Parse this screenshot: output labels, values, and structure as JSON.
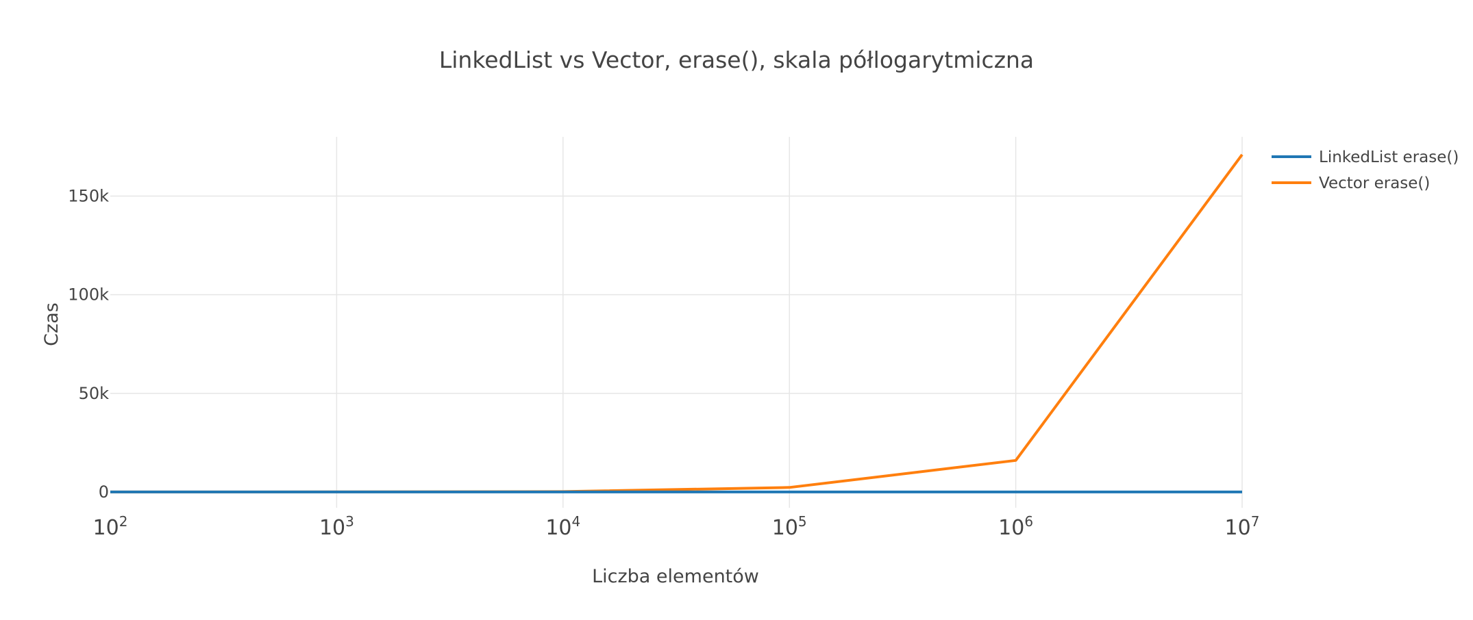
{
  "chart_data": {
    "type": "line",
    "title": "LinkedList vs Vector, erase(), skala półlogarytmiczna",
    "xlabel": "Liczba elementów",
    "ylabel": "Czas",
    "x_scale": "log",
    "xlim": [
      100,
      10000000
    ],
    "ylim": [
      -8000,
      180000
    ],
    "x_ticks": [
      {
        "base": "10",
        "exp": "2",
        "value": 100
      },
      {
        "base": "10",
        "exp": "3",
        "value": 1000
      },
      {
        "base": "10",
        "exp": "4",
        "value": 10000
      },
      {
        "base": "10",
        "exp": "5",
        "value": 100000
      },
      {
        "base": "10",
        "exp": "6",
        "value": 1000000
      },
      {
        "base": "10",
        "exp": "7",
        "value": 10000000
      }
    ],
    "y_ticks": [
      {
        "label": "0",
        "value": 0
      },
      {
        "label": "50k",
        "value": 50000
      },
      {
        "label": "100k",
        "value": 100000
      },
      {
        "label": "150k",
        "value": 150000
      }
    ],
    "grid": true,
    "legend_position": "top-right",
    "x": [
      100,
      1000,
      10000,
      100000,
      1000000,
      10000000
    ],
    "series": [
      {
        "name": "LinkedList erase()",
        "color": "#1f77b4",
        "values": [
          0,
          0,
          0,
          0,
          0,
          0
        ]
      },
      {
        "name": "Vector erase()",
        "color": "#ff7f0e",
        "values": [
          0,
          50,
          200,
          2300,
          16000,
          171000
        ]
      }
    ]
  }
}
